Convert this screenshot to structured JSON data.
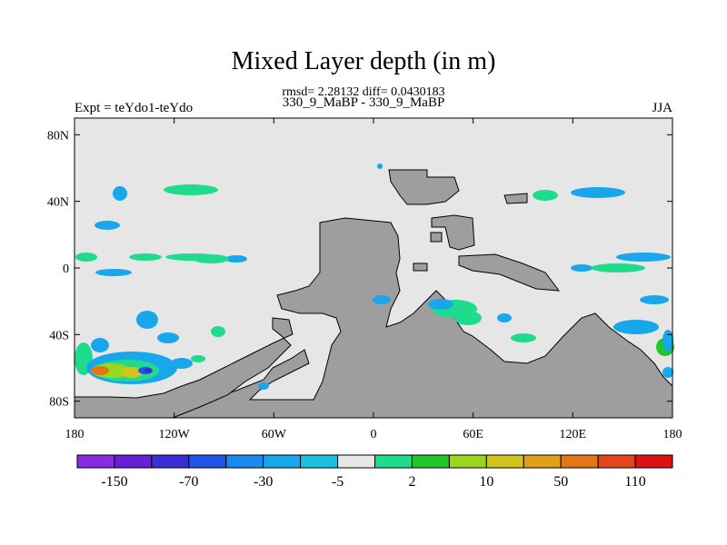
{
  "chart_data": {
    "type": "heatmap",
    "title": "Mixed Layer depth (in m)",
    "stats_line": "rmsd= 2.28132 diff= 0.0430183",
    "subtitle": "330_9_MaBP - 330_9_MaBP",
    "left_label": "Expt = teYdo1-teYdo",
    "right_label": "JJA",
    "x_ticks": [
      {
        "value": -180,
        "label": "180"
      },
      {
        "value": -120,
        "label": "120W"
      },
      {
        "value": -60,
        "label": "60W"
      },
      {
        "value": 0,
        "label": "0"
      },
      {
        "value": 60,
        "label": "60E"
      },
      {
        "value": 120,
        "label": "120E"
      },
      {
        "value": 180,
        "label": "180"
      }
    ],
    "y_ticks": [
      {
        "value": 80,
        "label": "80N"
      },
      {
        "value": 40,
        "label": "40N"
      },
      {
        "value": 0,
        "label": "0"
      },
      {
        "value": -40,
        "label": "40S"
      },
      {
        "value": -80,
        "label": "80S"
      }
    ],
    "xlim": [
      -180,
      180
    ],
    "ylim": [
      -90,
      90
    ],
    "colorbar": {
      "colors": [
        "#8a2be2",
        "#6a1fd6",
        "#3a2fd6",
        "#2255e6",
        "#1a8af0",
        "#17a7ea",
        "#19c0e0",
        "#e6e6e6",
        "#1fdc8c",
        "#22c62b",
        "#9ad61e",
        "#d2c41c",
        "#e0a018",
        "#e27618",
        "#e2461a",
        "#dd1212"
      ],
      "tick_labels": [
        "-150",
        "-70",
        "-30",
        "-5",
        "2",
        "10",
        "50",
        "110"
      ]
    },
    "land_color": "#9e9e9e",
    "ocean_color": "#e6e6e6"
  }
}
